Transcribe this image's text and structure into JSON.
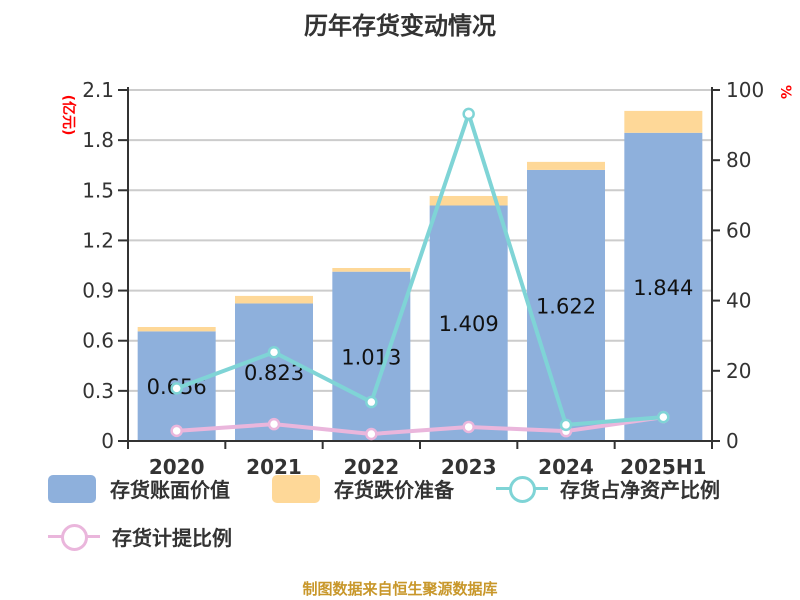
{
  "title": "历年存货变动情况",
  "footer": "制图数据来自恒生聚源数据库",
  "axes": {
    "left_unit": "(亿元)",
    "right_unit": "%",
    "left_ticks": [
      "0",
      "0.3",
      "0.6",
      "0.9",
      "1.2",
      "1.5",
      "1.8",
      "2.1"
    ],
    "right_ticks": [
      "0",
      "20",
      "40",
      "60",
      "80",
      "100"
    ]
  },
  "legend": [
    {
      "label": "存货账面价值",
      "color": "#8eb0dc",
      "type": "bar"
    },
    {
      "label": "存货跌价准备",
      "color": "#fed898",
      "type": "bar"
    },
    {
      "label": "存货占净资产比例",
      "color": "#7fd4d6",
      "type": "line"
    },
    {
      "label": "存货计提比例",
      "color": "#eab6dc",
      "type": "line"
    }
  ],
  "chart_data": {
    "type": "bar",
    "title": "历年存货变动情况",
    "categories": [
      "2020",
      "2021",
      "2022",
      "2023",
      "2024",
      "2025H1"
    ],
    "series": [
      {
        "name": "存货账面价值",
        "type": "bar",
        "stack": "inventory",
        "axis": "left",
        "values": [
          0.656,
          0.823,
          1.013,
          1.409,
          1.622,
          1.844
        ],
        "labels": [
          "0.656",
          "0.823",
          "1.013",
          "1.409",
          "1.622",
          "1.844"
        ]
      },
      {
        "name": "存货跌价准备",
        "type": "bar",
        "stack": "inventory",
        "axis": "left",
        "values": [
          0.026,
          0.045,
          0.022,
          0.057,
          0.048,
          0.131
        ]
      },
      {
        "name": "存货占净资产比例",
        "type": "line",
        "axis": "right",
        "values": [
          15.0,
          25.3,
          11.1,
          93.2,
          4.6,
          6.8
        ]
      },
      {
        "name": "存货计提比例",
        "type": "line",
        "axis": "right",
        "values": [
          2.9,
          4.8,
          2.0,
          4.0,
          2.8,
          6.8
        ]
      }
    ],
    "ylabel": "亿元",
    "ylim": [
      0,
      2.1
    ],
    "y2label": "%",
    "y2lim": [
      0,
      100
    ],
    "grid": true,
    "legend_position": "bottom"
  }
}
